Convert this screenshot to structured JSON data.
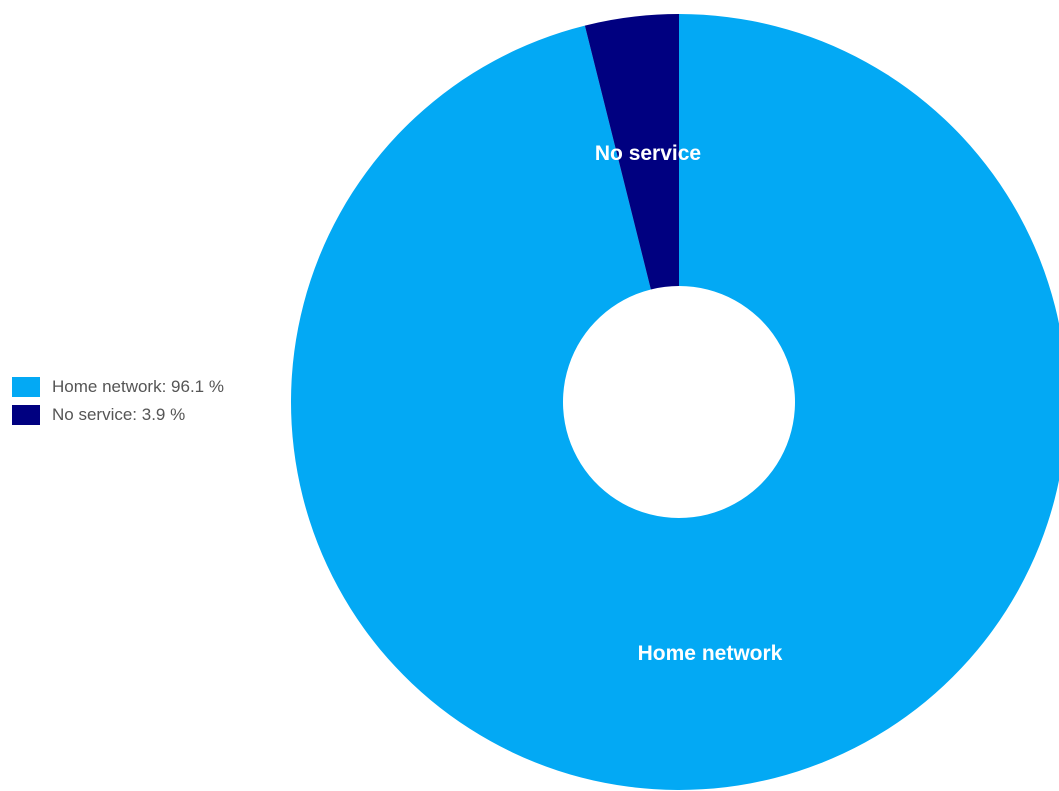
{
  "chart_data": {
    "type": "pie",
    "title": "",
    "donut": true,
    "legend_position": "left",
    "slices": [
      {
        "label": "Home network",
        "legend_text": "Home network: 96.1 %",
        "value": 96.1,
        "color": "#03a9f4"
      },
      {
        "label": "No service",
        "legend_text": "No service: 3.9 %",
        "value": 3.9,
        "color": "#000080"
      }
    ]
  }
}
